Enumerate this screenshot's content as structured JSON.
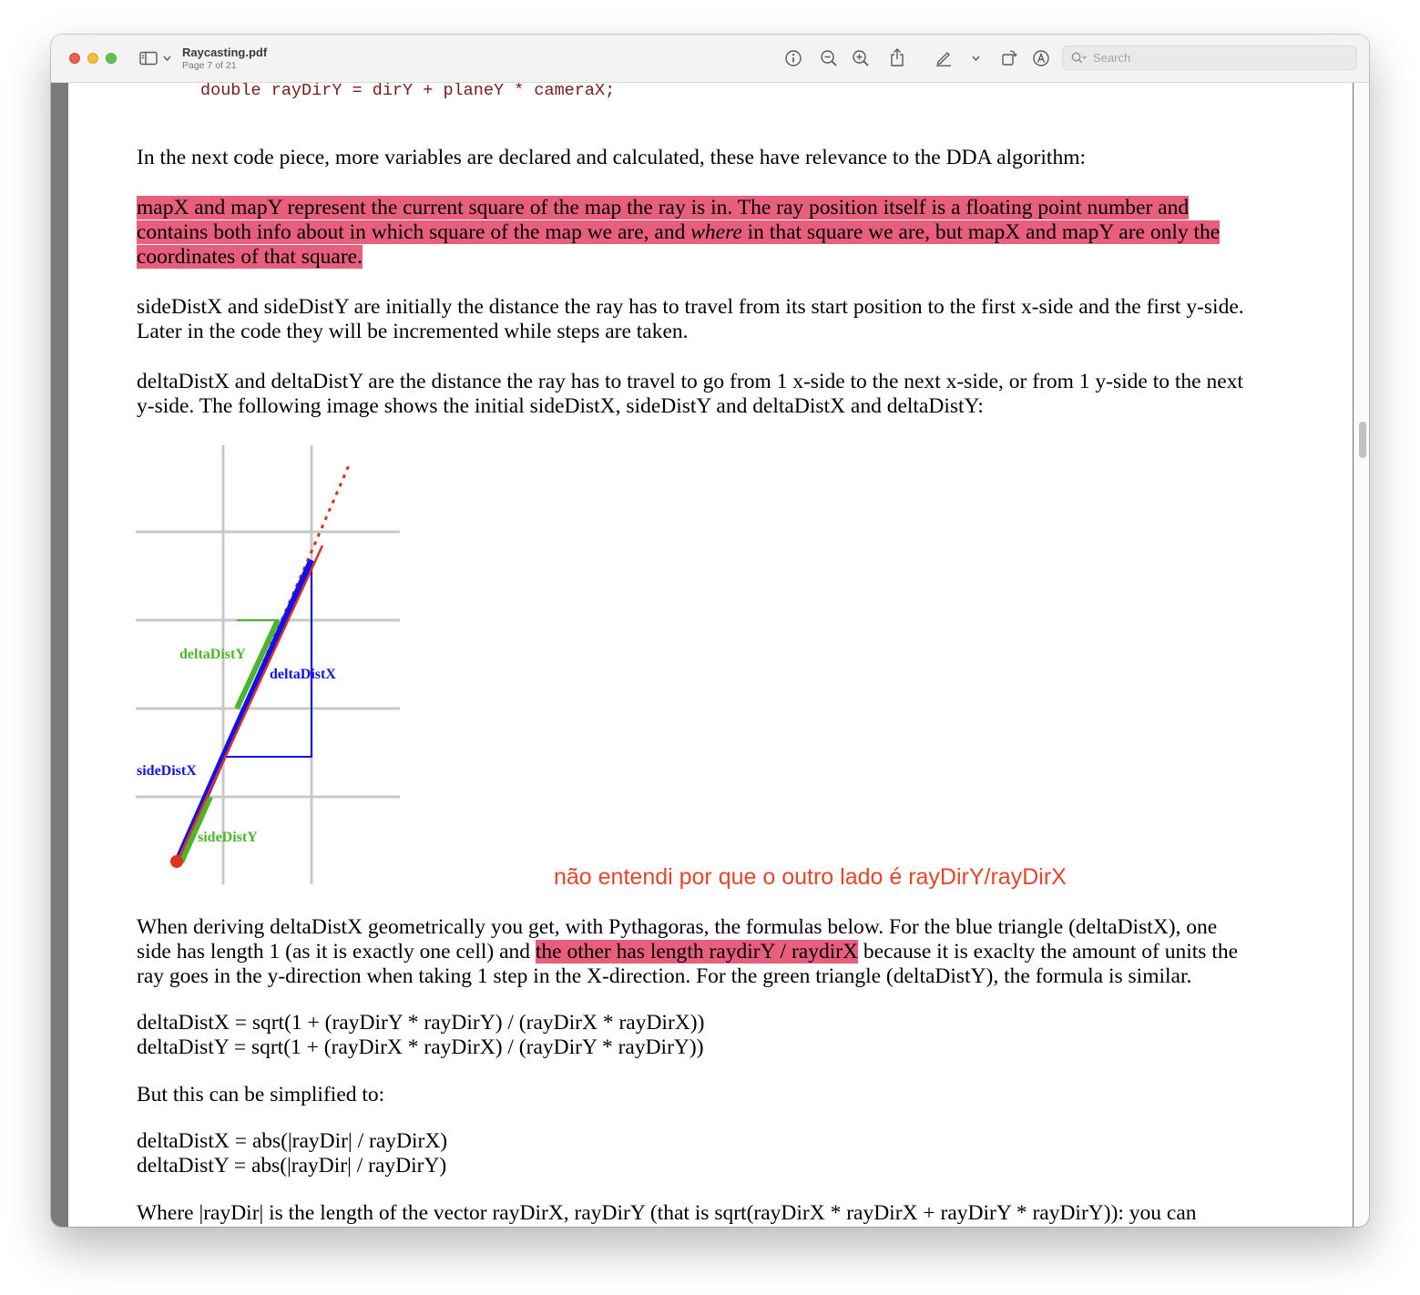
{
  "window": {
    "title": "Raycasting.pdf",
    "page_indicator": "Page 7 of 21",
    "search_placeholder": "Search"
  },
  "toolbar_icons": [
    "sidebar-toggle-icon",
    "chevron-down-icon",
    "info-icon",
    "zoom-out-icon",
    "zoom-in-icon",
    "share-icon",
    "markup-pen-icon",
    "chevron-down-icon",
    "rotate-icon",
    "annotate-icon",
    "search-icon"
  ],
  "document": {
    "code_line": "double rayDirY = dirY + planeY * cameraX;",
    "p_intro": "In the next code piece, more variables are declared and calculated, these have relevance to the DDA algorithm:",
    "p_map_1": "mapX and mapY represent the current square of the map the ray is in. The ray position itself is a floating point number and",
    "p_map_2a": "contains both info about in which square of the map we are, and ",
    "p_map_2_em": "where",
    "p_map_2b": " in that square we are, but mapX and mapY are only the",
    "p_map_3": "coordinates of that square.",
    "p_side_1": "sideDistX and sideDistY are initially the distance the ray has to travel from its start position to the first x-side and the first y-side.",
    "p_side_2": "Later in the code they will be incremented while steps are taken.",
    "p_delta_1": "deltaDistX and deltaDistY are the distance the ray has to travel to go from 1 x-side to the next x-side, or from 1 y-side to the next",
    "p_delta_2": "y-side. The following image shows the initial sideDistX, sideDistY and deltaDistX and deltaDistY:",
    "diagram_labels": {
      "delta_y": "deltaDistY",
      "delta_x": "deltaDistX",
      "side_x": "sideDistX",
      "side_y": "sideDistY"
    },
    "diagram_colors": {
      "grid": "#c8c8c8",
      "ray": "#e0301e",
      "blue": "#1010f0",
      "green": "#4cb52c"
    },
    "annotation_note": "não entendi por que o outro lado é rayDirY/rayDirX",
    "p_deriv_1": "When deriving deltaDistX geometrically you get, with Pythagoras, the formulas below. For the blue triangle (deltaDistX), one",
    "p_deriv_2a": "side has length 1 (as it is exactly one cell) and ",
    "p_deriv_2_hl": "the other has length raydirY / raydirX",
    "p_deriv_2b": " because it is exaclty the amount of units the",
    "p_deriv_3": "ray goes in the y-direction when taking 1 step in the X-direction. For the green triangle (deltaDistY), the formula is similar.",
    "formula_1": "deltaDistX = sqrt(1 + (rayDirY * rayDirY) / (rayDirX * rayDirX))",
    "formula_2": "deltaDistY = sqrt(1 + (rayDirX * rayDirX) / (rayDirY * rayDirY))",
    "p_simplified": "But this can be simplified to:",
    "formula_3": "deltaDistX = abs(|rayDir| / rayDirX)",
    "formula_4": "deltaDistY = abs(|rayDir| / rayDirY)",
    "p_where": "Where |rayDir| is the length of the vector rayDirX, rayDirY (that is sqrt(rayDirX * rayDirX + rayDirY * rayDirY)): you can"
  }
}
